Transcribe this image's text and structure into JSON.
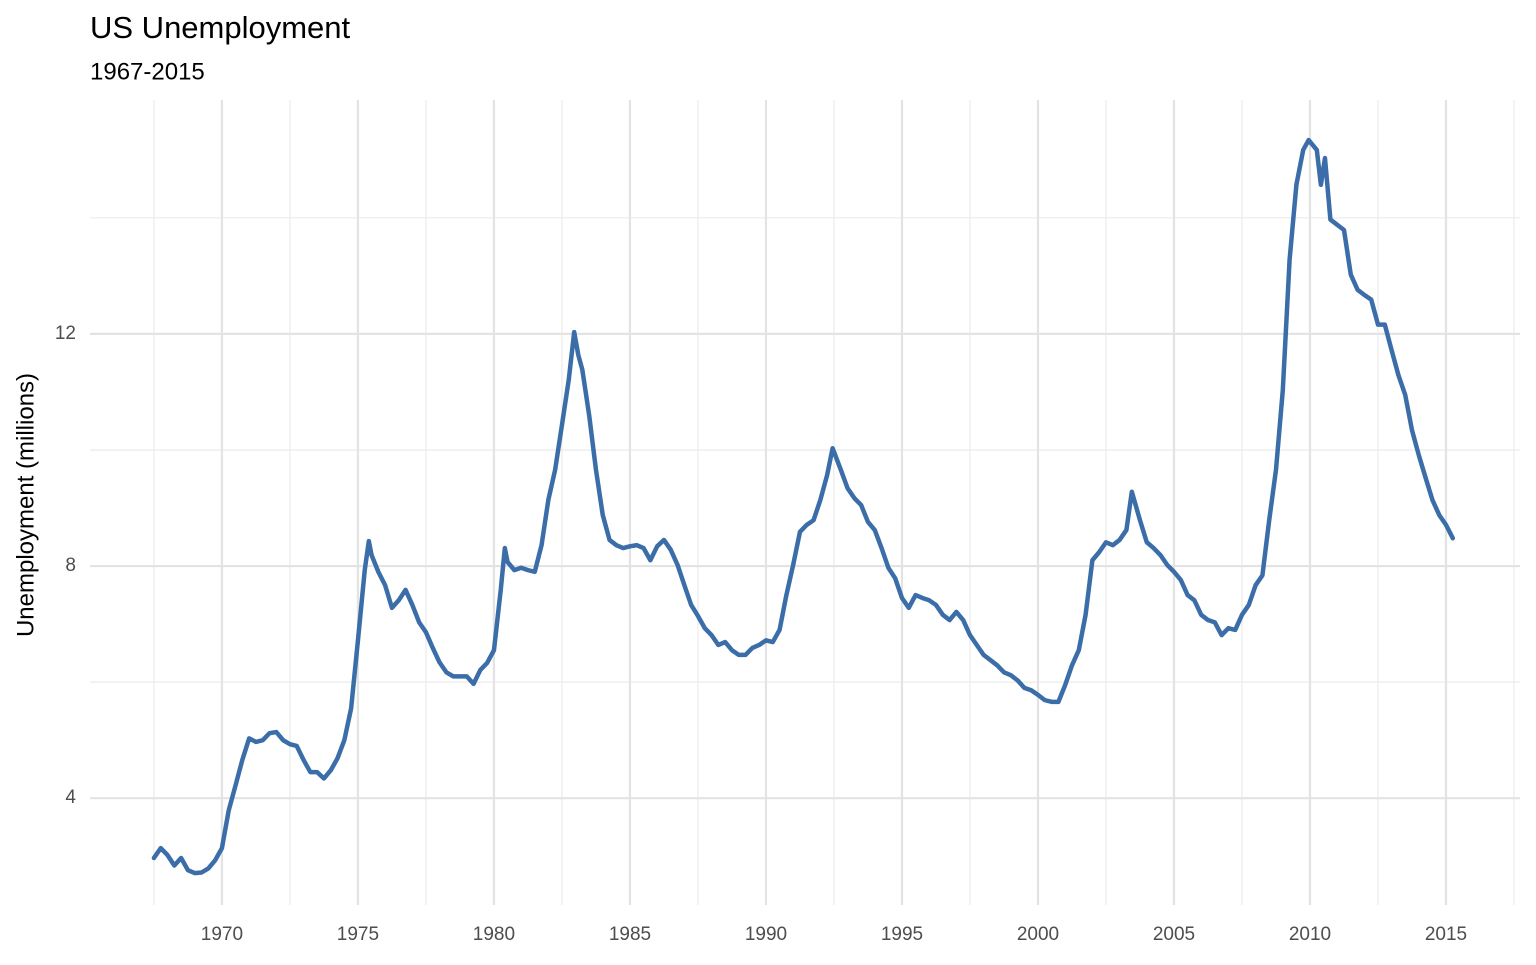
{
  "chart_data": {
    "type": "line",
    "title": "US Unemployment",
    "subtitle": "1967-2015",
    "y_label": "Unemployment (millions)",
    "color": "#3b6ea8",
    "grid": true,
    "xlim": [
      1965.15,
      2017.72
    ],
    "ylim": [
      2.16,
      16.03
    ],
    "xticks": [
      1970,
      1975,
      1980,
      1985,
      1990,
      1995,
      2000,
      2005,
      2010,
      2015
    ],
    "yticks": [
      4,
      8,
      12
    ],
    "minor_xticks": [
      1967.5,
      1972.5,
      1977.5,
      1982.5,
      1987.5,
      1992.5,
      1997.5,
      2002.5,
      2007.5,
      2012.5,
      2017.5
    ],
    "minor_yticks": [
      6,
      10,
      14
    ],
    "x": [
      1967.5,
      1967.75,
      1968,
      1968.25,
      1968.5,
      1968.75,
      1969,
      1969.25,
      1969.5,
      1969.75,
      1970,
      1970.25,
      1970.5,
      1970.75,
      1971,
      1971.25,
      1971.5,
      1971.75,
      1972,
      1972.25,
      1972.5,
      1972.75,
      1973,
      1973.25,
      1973.5,
      1973.75,
      1974,
      1974.25,
      1974.5,
      1974.75,
      1975,
      1975.25,
      1975.4,
      1975.5,
      1975.75,
      1976,
      1976.25,
      1976.5,
      1976.75,
      1977,
      1977.25,
      1977.5,
      1977.75,
      1978,
      1978.25,
      1978.5,
      1978.75,
      1979,
      1979.25,
      1979.5,
      1979.75,
      1980,
      1980.25,
      1980.4,
      1980.5,
      1980.75,
      1981,
      1981.25,
      1981.5,
      1981.75,
      1982,
      1982.25,
      1982.5,
      1982.75,
      1982.95,
      1983.1,
      1983.25,
      1983.5,
      1983.75,
      1984,
      1984.25,
      1984.5,
      1984.75,
      1985,
      1985.25,
      1985.5,
      1985.75,
      1986,
      1986.25,
      1986.5,
      1986.75,
      1987,
      1987.25,
      1987.5,
      1987.75,
      1988,
      1988.25,
      1988.5,
      1988.75,
      1989,
      1989.25,
      1989.5,
      1989.75,
      1990,
      1990.25,
      1990.5,
      1990.75,
      1991,
      1991.25,
      1991.5,
      1991.75,
      1992,
      1992.25,
      1992.45,
      1992.75,
      1993,
      1993.25,
      1993.5,
      1993.75,
      1994,
      1994.25,
      1994.5,
      1994.75,
      1995,
      1995.25,
      1995.5,
      1995.75,
      1996,
      1996.25,
      1996.5,
      1996.75,
      1997,
      1997.25,
      1997.5,
      1997.75,
      1998,
      1998.25,
      1998.5,
      1998.75,
      1999,
      1999.25,
      1999.5,
      1999.75,
      2000,
      2000.25,
      2000.5,
      2000.75,
      2001,
      2001.25,
      2001.5,
      2001.75,
      2002,
      2002.25,
      2002.5,
      2002.75,
      2003,
      2003.25,
      2003.45,
      2003.75,
      2004,
      2004.25,
      2004.5,
      2004.75,
      2005,
      2005.25,
      2005.5,
      2005.75,
      2006,
      2006.25,
      2006.5,
      2006.75,
      2007,
      2007.25,
      2007.5,
      2007.75,
      2008,
      2008.25,
      2008.5,
      2008.75,
      2009,
      2009.25,
      2009.5,
      2009.75,
      2009.95,
      2010.25,
      2010.4,
      2010.55,
      2010.75,
      2011,
      2011.25,
      2011.5,
      2011.75,
      2012,
      2012.25,
      2012.5,
      2012.75,
      2013,
      2013.25,
      2013.5,
      2013.75,
      2014,
      2014.25,
      2014.5,
      2014.75,
      2015,
      2015.25
    ],
    "values": [
      2.97,
      3.14,
      3.02,
      2.84,
      2.97,
      2.76,
      2.71,
      2.72,
      2.79,
      2.93,
      3.14,
      3.79,
      4.22,
      4.66,
      5.03,
      4.97,
      5.0,
      5.12,
      5.14,
      5.0,
      4.93,
      4.9,
      4.66,
      4.45,
      4.45,
      4.34,
      4.48,
      4.69,
      5.0,
      5.55,
      6.72,
      7.93,
      8.43,
      8.19,
      7.9,
      7.67,
      7.28,
      7.41,
      7.59,
      7.33,
      7.03,
      6.86,
      6.59,
      6.34,
      6.17,
      6.1,
      6.1,
      6.1,
      5.97,
      6.21,
      6.33,
      6.55,
      7.59,
      8.31,
      8.07,
      7.93,
      7.97,
      7.93,
      7.9,
      8.36,
      9.14,
      9.66,
      10.43,
      11.21,
      12.03,
      11.64,
      11.38,
      10.6,
      9.66,
      8.88,
      8.45,
      8.36,
      8.31,
      8.34,
      8.36,
      8.31,
      8.1,
      8.34,
      8.45,
      8.28,
      8.02,
      7.67,
      7.33,
      7.14,
      6.93,
      6.81,
      6.64,
      6.69,
      6.55,
      6.47,
      6.47,
      6.59,
      6.64,
      6.72,
      6.69,
      6.9,
      7.5,
      8.02,
      8.59,
      8.71,
      8.79,
      9.14,
      9.57,
      10.03,
      9.66,
      9.34,
      9.17,
      9.05,
      8.76,
      8.62,
      8.31,
      7.97,
      7.79,
      7.45,
      7.28,
      7.5,
      7.45,
      7.41,
      7.33,
      7.16,
      7.07,
      7.21,
      7.07,
      6.81,
      6.64,
      6.47,
      6.38,
      6.29,
      6.17,
      6.12,
      6.03,
      5.9,
      5.86,
      5.78,
      5.69,
      5.66,
      5.66,
      5.95,
      6.29,
      6.55,
      7.16,
      8.1,
      8.24,
      8.41,
      8.36,
      8.45,
      8.62,
      9.28,
      8.79,
      8.41,
      8.31,
      8.19,
      8.02,
      7.9,
      7.76,
      7.5,
      7.41,
      7.16,
      7.07,
      7.03,
      6.81,
      6.93,
      6.9,
      7.16,
      7.33,
      7.67,
      7.84,
      8.79,
      9.66,
      11.03,
      13.28,
      14.57,
      15.17,
      15.34,
      15.17,
      14.57,
      15.03,
      13.97,
      13.88,
      13.79,
      13.02,
      12.76,
      12.67,
      12.59,
      12.16,
      12.16,
      11.72,
      11.29,
      10.95,
      10.34,
      9.91,
      9.52,
      9.14,
      8.88,
      8.71,
      8.48
    ]
  }
}
